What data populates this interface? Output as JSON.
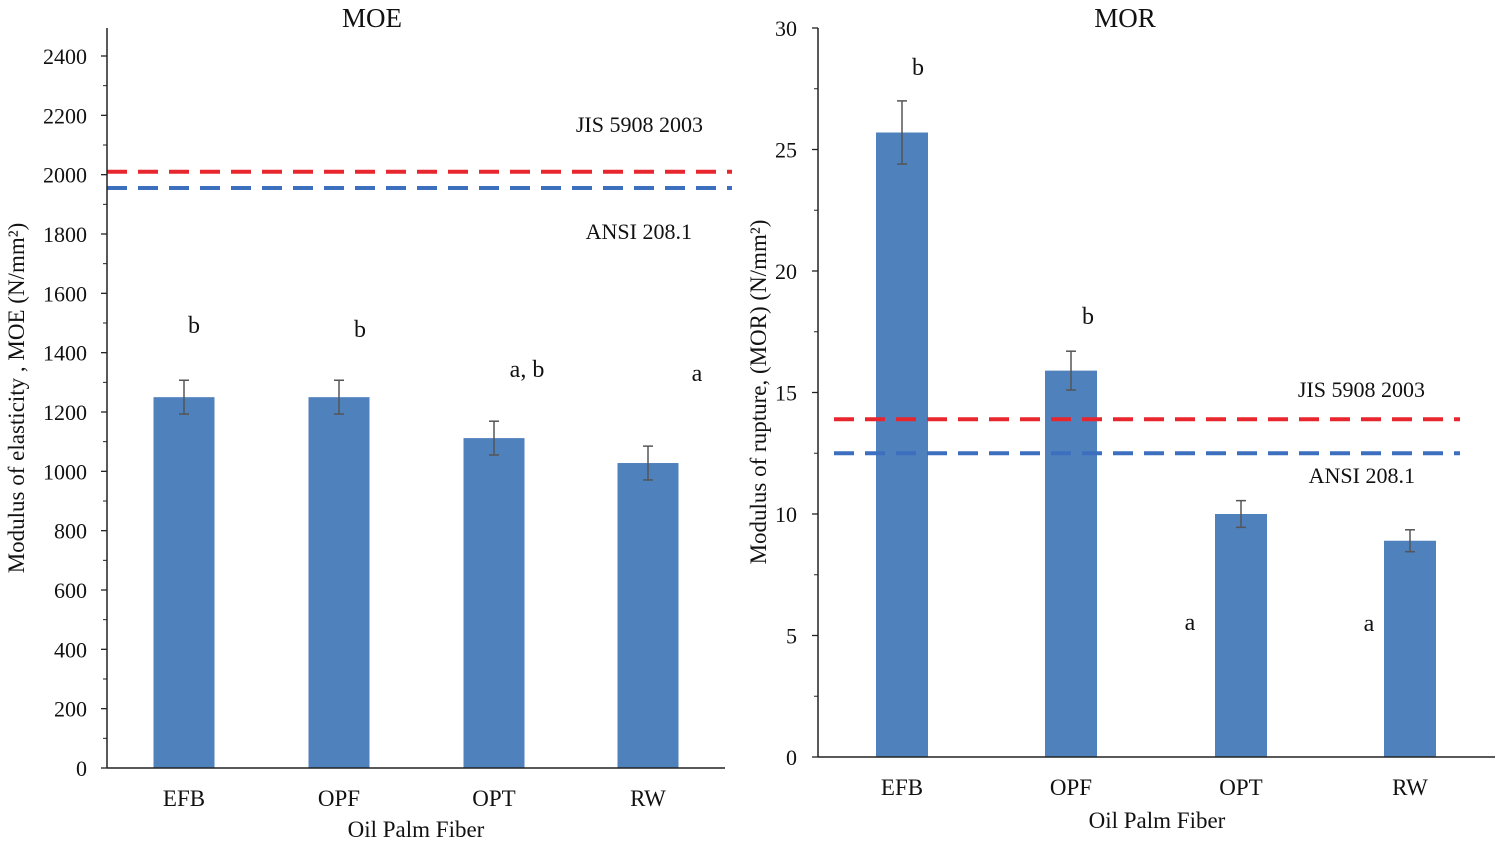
{
  "chart_data": [
    {
      "type": "bar",
      "title": "MOE",
      "xlabel": "Oil Palm Fiber",
      "ylabel": "Modulus of elasticity , MOE (N/mm²)",
      "categories": [
        "EFB",
        "OPF",
        "OPT",
        "RW"
      ],
      "values": [
        1250,
        1250,
        1112,
        1028
      ],
      "errors": [
        57,
        57,
        57,
        57
      ],
      "significance": [
        "b",
        "b",
        "a, b",
        "a"
      ],
      "ylim": [
        0,
        2400
      ],
      "yticks": [
        0,
        200,
        400,
        600,
        800,
        1000,
        1200,
        1400,
        1600,
        1800,
        2000,
        2200,
        2400
      ],
      "bar_color": "#4f81bd",
      "reference_lines": [
        {
          "label": "JIS 5908 2003",
          "value": 2010,
          "color": "#e8262d"
        },
        {
          "label": "ANSI 208.1",
          "value": 1955,
          "color": "#3d6fbf"
        }
      ],
      "grid": false
    },
    {
      "type": "bar",
      "title": "MOR",
      "xlabel": "Oil Palm Fiber",
      "ylabel": "Modulus of rupture, (MOR) (N/mm²)",
      "categories": [
        "EFB",
        "OPF",
        "OPT",
        "RW"
      ],
      "values": [
        25.7,
        15.9,
        10.0,
        8.9
      ],
      "errors": [
        1.3,
        0.8,
        0.55,
        0.45
      ],
      "significance": [
        "b",
        "b",
        "a",
        "a"
      ],
      "ylim": [
        0,
        30
      ],
      "yticks": [
        0,
        5,
        10,
        15,
        20,
        25,
        30
      ],
      "bar_color": "#4f81bd",
      "reference_lines": [
        {
          "label": "JIS 5908 2003",
          "value": 13.9,
          "color": "#e8262d"
        },
        {
          "label": "ANSI 208.1",
          "value": 12.5,
          "color": "#3d6fbf"
        }
      ],
      "grid": false
    }
  ]
}
